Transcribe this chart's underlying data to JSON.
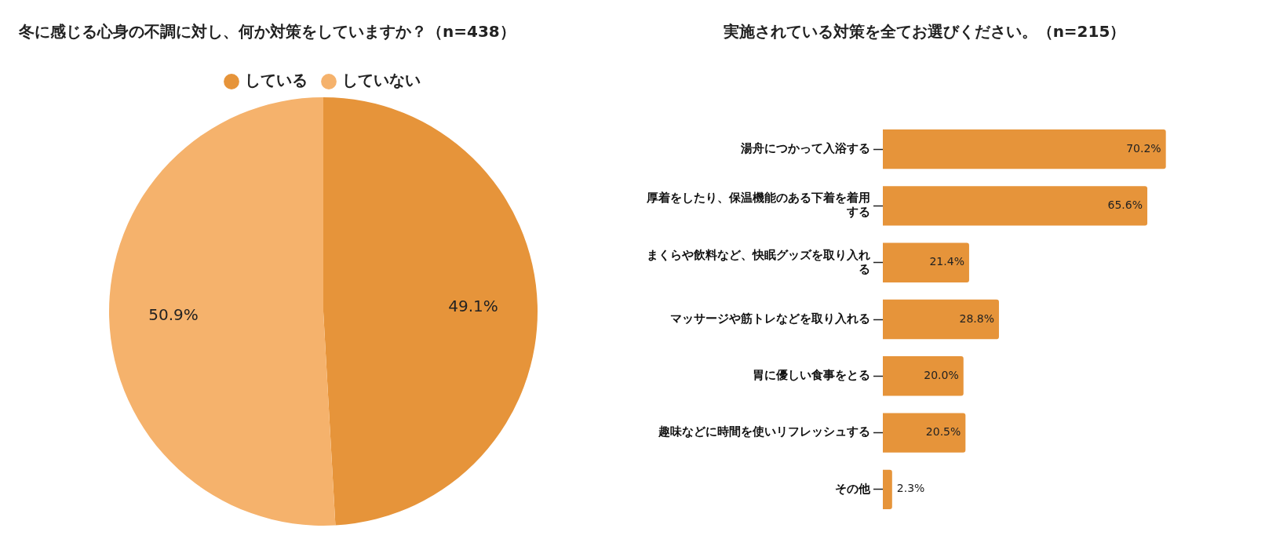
{
  "chart_data": [
    {
      "type": "pie",
      "title": "冬に感じる心身の不調に対し、何か対策をしていますか？（n=438）",
      "categories": [
        "している",
        "していない"
      ],
      "values": [
        49.1,
        50.9
      ],
      "colors": [
        "#e6943a",
        "#f5b26c"
      ],
      "legend": "top",
      "value_labels": [
        "49.1%",
        "50.9%"
      ]
    },
    {
      "type": "bar",
      "orientation": "horizontal",
      "title": "実施されている対策を全てお選びください。（n=215）",
      "categories": [
        "湯舟につかって入浴する",
        "厚着をしたり、保温機能のある下着を着用する",
        "まくらや飲料など、快眠グッズを取り入れる",
        "マッサージや筋トレなどを取り入れる",
        "胃に優しい食事をとる",
        "趣味などに時間を使いリフレッシュする",
        "その他"
      ],
      "values": [
        70.2,
        65.6,
        21.4,
        28.8,
        20.0,
        20.5,
        2.3
      ],
      "color": "#e6943a",
      "value_labels": [
        "70.2%",
        "65.6%",
        "21.4%",
        "28.8%",
        "20.0%",
        "20.5%",
        "2.3%"
      ],
      "tick_labels": "y"
    }
  ]
}
